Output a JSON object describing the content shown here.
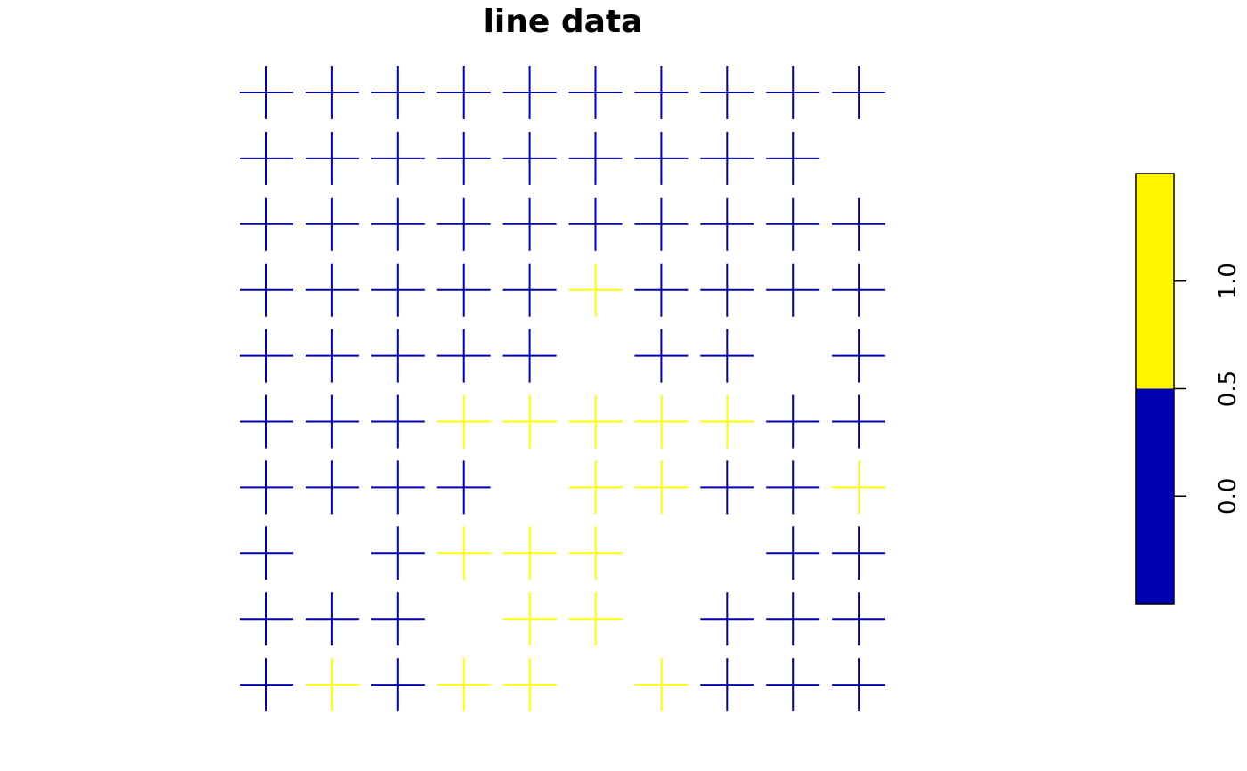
{
  "chart_data": {
    "type": "scatter",
    "title": "line data",
    "xlabel": "",
    "ylabel": "",
    "grid": false,
    "marker": "cross",
    "x": [
      1,
      2,
      3,
      4,
      5,
      6,
      7,
      8,
      9,
      10
    ],
    "y": [
      1,
      2,
      3,
      4,
      5,
      6,
      7,
      8,
      9,
      10
    ],
    "values_by_row_top_to_bottom": [
      [
        0,
        0,
        0,
        0,
        0,
        0,
        0,
        0,
        0,
        0
      ],
      [
        0,
        0,
        0,
        0,
        0,
        0,
        0,
        0,
        0,
        null
      ],
      [
        0,
        0,
        0,
        0,
        0,
        0,
        0,
        0,
        0,
        0
      ],
      [
        0,
        0,
        0,
        0,
        0,
        1,
        0,
        0,
        0,
        0
      ],
      [
        0,
        0,
        0,
        0,
        0,
        null,
        0,
        0,
        null,
        0
      ],
      [
        0,
        0,
        0,
        1,
        1,
        1,
        1,
        1,
        0,
        0
      ],
      [
        0,
        0,
        0,
        0,
        null,
        1,
        1,
        0,
        0,
        1
      ],
      [
        0,
        null,
        0,
        1,
        1,
        1,
        null,
        null,
        0,
        0
      ],
      [
        0,
        0,
        0,
        null,
        1,
        1,
        null,
        0,
        0,
        0
      ],
      [
        0,
        1,
        0,
        1,
        1,
        null,
        1,
        0,
        0,
        0
      ]
    ],
    "colors": {
      "0": "#0000b3",
      "1": "#ffff00"
    },
    "legend": {
      "placement": "right",
      "type": "colorbar",
      "range": [
        -0.5,
        1.5
      ],
      "breaks": [
        -0.5,
        0.5,
        1.5
      ],
      "colors": [
        "#0000b3",
        "#fff600"
      ],
      "ticks": [
        0.0,
        0.5,
        1.0
      ],
      "tick_labels": [
        "0.0",
        "0.5",
        "1.0"
      ]
    }
  }
}
